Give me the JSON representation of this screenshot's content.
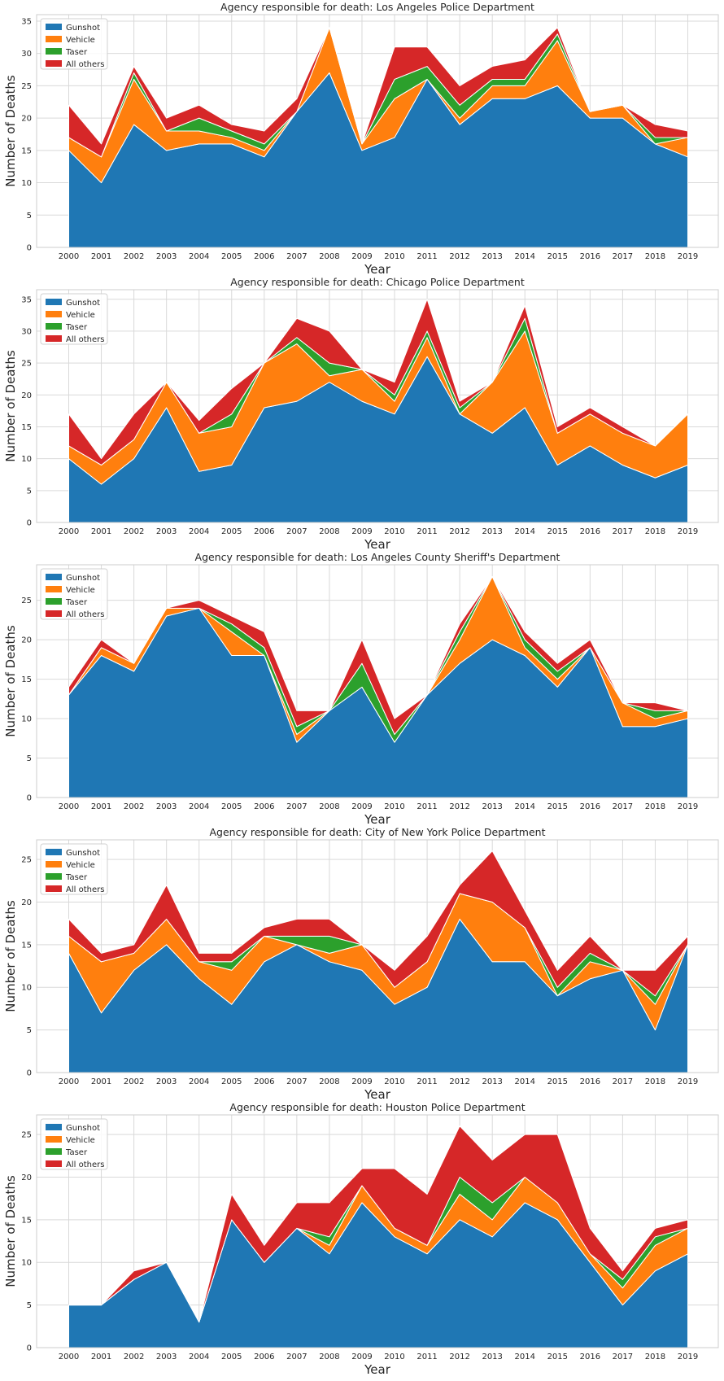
{
  "chart_data": [
    {
      "type": "area",
      "title": "Agency responsible for death: Los Angeles Police Department",
      "xlabel": "Year",
      "ylabel": "Number of Deaths",
      "categories": [
        "2000",
        "2001",
        "2002",
        "2003",
        "2004",
        "2005",
        "2006",
        "2007",
        "2008",
        "2009",
        "2010",
        "2011",
        "2012",
        "2013",
        "2014",
        "2015",
        "2016",
        "2017",
        "2018",
        "2019"
      ],
      "ylim": [
        0,
        36
      ],
      "yticks": [
        0,
        5,
        10,
        15,
        20,
        25,
        30,
        35
      ],
      "legend_position": "top-left",
      "grid": true,
      "series": [
        {
          "name": "Gunshot",
          "color": "#1f77b4",
          "values": [
            15,
            10,
            19,
            15,
            16,
            16,
            14,
            21,
            27,
            15,
            17,
            26,
            19,
            23,
            23,
            25,
            20,
            20,
            16,
            14
          ]
        },
        {
          "name": "Vehicle",
          "color": "#ff7f0e",
          "values": [
            2,
            4,
            7,
            3,
            2,
            1,
            1,
            0,
            7,
            1,
            6,
            0,
            1,
            2,
            2,
            7,
            1,
            2,
            0,
            3
          ]
        },
        {
          "name": "Taser",
          "color": "#2ca02c",
          "values": [
            0,
            0,
            1,
            0,
            2,
            1,
            1,
            0,
            0,
            0,
            3,
            2,
            2,
            1,
            1,
            1,
            0,
            0,
            1,
            0
          ]
        },
        {
          "name": "All others",
          "color": "#d62728",
          "values": [
            5,
            2,
            1,
            2,
            2,
            1,
            2,
            2,
            0,
            0,
            5,
            3,
            3,
            2,
            3,
            1,
            0,
            0,
            2,
            1
          ]
        }
      ]
    },
    {
      "type": "area",
      "title": "Agency responsible for death: Chicago Police Department",
      "xlabel": "Year",
      "ylabel": "Number of Deaths",
      "categories": [
        "2000",
        "2001",
        "2002",
        "2003",
        "2004",
        "2005",
        "2006",
        "2007",
        "2008",
        "2009",
        "2010",
        "2011",
        "2012",
        "2013",
        "2014",
        "2015",
        "2016",
        "2017",
        "2018",
        "2019"
      ],
      "ylim": [
        0,
        36.5
      ],
      "yticks": [
        0,
        5,
        10,
        15,
        20,
        25,
        30,
        35
      ],
      "legend_position": "top-left",
      "grid": true,
      "series": [
        {
          "name": "Gunshot",
          "color": "#1f77b4",
          "values": [
            10,
            6,
            10,
            18,
            8,
            9,
            18,
            19,
            22,
            19,
            17,
            26,
            17,
            14,
            18,
            9,
            12,
            9,
            7,
            9
          ]
        },
        {
          "name": "Vehicle",
          "color": "#ff7f0e",
          "values": [
            2,
            3,
            3,
            4,
            6,
            6,
            7,
            9,
            1,
            5,
            2,
            3,
            0,
            8,
            12,
            5,
            5,
            5,
            5,
            8
          ]
        },
        {
          "name": "Taser",
          "color": "#2ca02c",
          "values": [
            0,
            0,
            0,
            0,
            0,
            2,
            0,
            1,
            2,
            0,
            1,
            1,
            1,
            0,
            2,
            0,
            0,
            0,
            0,
            0
          ]
        },
        {
          "name": "All others",
          "color": "#d62728",
          "values": [
            5,
            1,
            4,
            0,
            2,
            4,
            0,
            3,
            5,
            0,
            2,
            5,
            1,
            0,
            2,
            1,
            1,
            1,
            0,
            0
          ]
        }
      ]
    },
    {
      "type": "area",
      "title": "Agency responsible for death: Los Angeles County Sheriff's Department",
      "xlabel": "Year",
      "ylabel": "Number of Deaths",
      "categories": [
        "2000",
        "2001",
        "2002",
        "2003",
        "2004",
        "2005",
        "2006",
        "2007",
        "2008",
        "2009",
        "2010",
        "2011",
        "2012",
        "2013",
        "2014",
        "2015",
        "2016",
        "2017",
        "2018",
        "2019"
      ],
      "ylim": [
        0,
        29.5
      ],
      "yticks": [
        0,
        5,
        10,
        15,
        20,
        25
      ],
      "legend_position": "top-left",
      "grid": true,
      "series": [
        {
          "name": "Gunshot",
          "color": "#1f77b4",
          "values": [
            13,
            18,
            16,
            23,
            24,
            18,
            18,
            7,
            11,
            14,
            7,
            13,
            17,
            20,
            18,
            14,
            19,
            9,
            9,
            10
          ]
        },
        {
          "name": "Vehicle",
          "color": "#ff7f0e",
          "values": [
            0,
            1,
            1,
            1,
            0,
            3,
            0,
            1,
            0,
            0,
            0,
            0,
            3,
            8,
            1,
            1,
            0,
            3,
            1,
            1
          ]
        },
        {
          "name": "Taser",
          "color": "#2ca02c",
          "values": [
            0,
            0,
            0,
            0,
            0,
            1,
            1,
            1,
            0,
            3,
            1,
            0,
            1,
            0,
            1,
            1,
            0,
            0,
            1,
            0
          ]
        },
        {
          "name": "All others",
          "color": "#d62728",
          "values": [
            1,
            1,
            0,
            0,
            1,
            1,
            2,
            2,
            0,
            3,
            2,
            0,
            1,
            0,
            1,
            1,
            1,
            0,
            1,
            0
          ]
        }
      ]
    },
    {
      "type": "area",
      "title": "Agency responsible for death: City of New York Police Department",
      "xlabel": "Year",
      "ylabel": "Number of Deaths",
      "categories": [
        "2000",
        "2001",
        "2002",
        "2003",
        "2004",
        "2005",
        "2006",
        "2007",
        "2008",
        "2009",
        "2010",
        "2011",
        "2012",
        "2013",
        "2014",
        "2015",
        "2016",
        "2017",
        "2018",
        "2019"
      ],
      "ylim": [
        0,
        27.3
      ],
      "yticks": [
        0,
        5,
        10,
        15,
        20,
        25
      ],
      "legend_position": "top-left",
      "grid": true,
      "series": [
        {
          "name": "Gunshot",
          "color": "#1f77b4",
          "values": [
            14,
            7,
            12,
            15,
            11,
            8,
            13,
            15,
            13,
            12,
            8,
            10,
            18,
            13,
            13,
            9,
            11,
            12,
            5,
            15
          ]
        },
        {
          "name": "Vehicle",
          "color": "#ff7f0e",
          "values": [
            2,
            6,
            2,
            3,
            2,
            4,
            3,
            0,
            1,
            3,
            2,
            3,
            3,
            7,
            4,
            0,
            2,
            0,
            3,
            0
          ]
        },
        {
          "name": "Taser",
          "color": "#2ca02c",
          "values": [
            0,
            0,
            0,
            0,
            0,
            1,
            0,
            1,
            2,
            0,
            0,
            0,
            0,
            0,
            0,
            1,
            1,
            0,
            1,
            0
          ]
        },
        {
          "name": "All others",
          "color": "#d62728",
          "values": [
            2,
            1,
            1,
            4,
            1,
            1,
            1,
            2,
            2,
            0,
            2,
            3,
            1,
            6,
            2,
            2,
            2,
            0,
            3,
            1
          ]
        }
      ]
    },
    {
      "type": "area",
      "title": "Agency responsible for death: Houston Police Department",
      "xlabel": "Year",
      "ylabel": "Number of Deaths",
      "categories": [
        "2000",
        "2001",
        "2002",
        "2003",
        "2004",
        "2005",
        "2006",
        "2007",
        "2008",
        "2009",
        "2010",
        "2011",
        "2012",
        "2013",
        "2014",
        "2015",
        "2016",
        "2017",
        "2018",
        "2019"
      ],
      "ylim": [
        0,
        27.3
      ],
      "yticks": [
        0,
        5,
        10,
        15,
        20,
        25
      ],
      "legend_position": "top-left",
      "grid": true,
      "series": [
        {
          "name": "Gunshot",
          "color": "#1f77b4",
          "values": [
            5,
            5,
            8,
            10,
            3,
            15,
            10,
            14,
            11,
            17,
            13,
            11,
            15,
            13,
            17,
            15,
            10,
            5,
            9,
            11
          ]
        },
        {
          "name": "Vehicle",
          "color": "#ff7f0e",
          "values": [
            0,
            0,
            0,
            0,
            0,
            0,
            0,
            0,
            1,
            2,
            1,
            1,
            3,
            2,
            3,
            2,
            1,
            2,
            3,
            3
          ]
        },
        {
          "name": "Taser",
          "color": "#2ca02c",
          "values": [
            0,
            0,
            0,
            0,
            0,
            0,
            0,
            0,
            1,
            0,
            0,
            0,
            2,
            2,
            0,
            0,
            0,
            1,
            1,
            0
          ]
        },
        {
          "name": "All others",
          "color": "#d62728",
          "values": [
            0,
            0,
            1,
            0,
            0,
            3,
            2,
            3,
            4,
            2,
            7,
            6,
            6,
            5,
            5,
            8,
            3,
            1,
            1,
            1
          ]
        }
      ]
    }
  ]
}
